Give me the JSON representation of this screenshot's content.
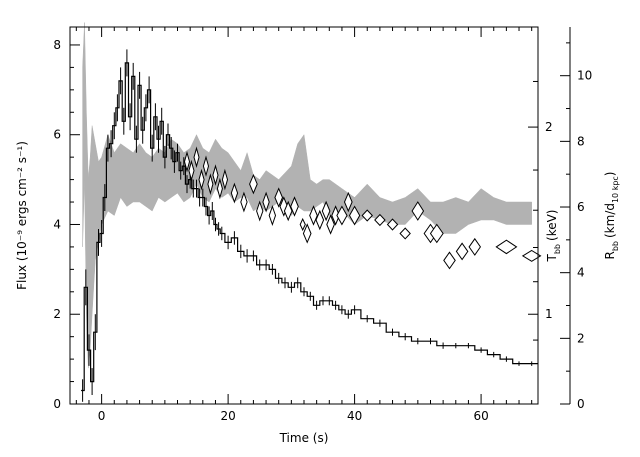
{
  "chart_data": {
    "type": "line",
    "xlabel": "Time (s)",
    "ylabel_left": "Flux (10⁻⁹ ergs cm⁻² s⁻¹)",
    "ylabel_right_inner": "Tₙₙ (keV)",
    "ylabel_right_inner_main": "T",
    "ylabel_right_inner_sub": "bb",
    "ylabel_right_inner_unit": "(keV)",
    "ylabel_right_outer_main": "R",
    "ylabel_right_outer_sub": "bb",
    "ylabel_right_outer_unit": "(km/d",
    "ylabel_right_outer_unit_sub": "10 kpc",
    "ylabel_right_outer_unit_end": ")",
    "xlim": [
      -5,
      69
    ],
    "ylim_left": [
      0,
      8.4
    ],
    "x_ticks": [
      0,
      20,
      40,
      60
    ],
    "y_left_ticks": [
      0,
      2,
      4,
      6,
      8
    ],
    "y_temp_ticks": [
      1,
      2
    ],
    "y_temp_tick_flux": [
      2.0,
      6.17
    ],
    "y_radius_ticks": [
      0,
      2,
      4,
      6,
      8,
      10
    ],
    "y_radius_scale_flux_per_unit": 0.7315,
    "series": [
      {
        "role": "flux",
        "style": "black step histogram with error bars",
        "x": [
          -3,
          -2.5,
          -2,
          -1.5,
          -1,
          -0.5,
          0,
          0.5,
          1,
          1.5,
          2,
          2.5,
          3,
          3.5,
          4,
          4.5,
          5,
          5.5,
          6,
          6.5,
          7,
          7.5,
          8,
          8.5,
          9,
          9.5,
          10,
          10.5,
          11,
          11.5,
          12,
          12.5,
          13,
          13.5,
          14,
          14.5,
          15,
          15.5,
          16,
          16.5,
          17,
          17.5,
          18,
          18.5,
          19,
          20,
          21,
          22,
          23,
          24,
          25,
          26,
          27,
          28,
          29,
          30,
          31,
          32,
          33,
          34,
          35,
          36,
          37,
          38,
          39,
          40,
          42,
          44,
          46,
          48,
          50,
          52,
          54,
          56,
          58,
          60,
          62,
          64,
          66,
          68
        ],
        "y": [
          0.3,
          2.6,
          1.2,
          0.5,
          1.6,
          3.6,
          3.8,
          4.6,
          5.7,
          5.8,
          6.2,
          6.6,
          7.2,
          6.3,
          7.6,
          6.4,
          7.3,
          5.9,
          7.1,
          6.1,
          6.6,
          7.0,
          5.7,
          6.4,
          5.9,
          6.3,
          5.5,
          6.0,
          5.7,
          5.4,
          5.6,
          5.2,
          5.3,
          4.9,
          5.0,
          4.8,
          4.8,
          4.6,
          4.6,
          4.4,
          4.2,
          4.3,
          4.0,
          3.9,
          3.8,
          3.6,
          3.7,
          3.4,
          3.3,
          3.3,
          3.1,
          3.1,
          3.0,
          2.8,
          2.7,
          2.6,
          2.7,
          2.5,
          2.4,
          2.2,
          2.3,
          2.3,
          2.2,
          2.1,
          2.0,
          2.1,
          1.9,
          1.8,
          1.6,
          1.5,
          1.4,
          1.4,
          1.3,
          1.3,
          1.3,
          1.2,
          1.1,
          1.0,
          0.9,
          0.9
        ],
        "yerr": [
          0.25,
          0.4,
          0.35,
          0.3,
          0.4,
          0.3,
          0.3,
          0.3,
          0.3,
          0.3,
          0.3,
          0.3,
          0.3,
          0.3,
          0.3,
          0.3,
          0.3,
          0.3,
          0.3,
          0.3,
          0.3,
          0.3,
          0.3,
          0.3,
          0.3,
          0.3,
          0.25,
          0.25,
          0.25,
          0.25,
          0.2,
          0.2,
          0.2,
          0.2,
          0.2,
          0.2,
          0.2,
          0.2,
          0.2,
          0.2,
          0.2,
          0.2,
          0.15,
          0.15,
          0.15,
          0.15,
          0.15,
          0.15,
          0.15,
          0.12,
          0.12,
          0.12,
          0.12,
          0.12,
          0.12,
          0.12,
          0.12,
          0.1,
          0.1,
          0.1,
          0.1,
          0.1,
          0.1,
          0.1,
          0.1,
          0.1,
          0.08,
          0.08,
          0.08,
          0.08,
          0.07,
          0.07,
          0.07,
          0.06,
          0.06,
          0.06,
          0.06,
          0.06,
          0.05,
          0.05
        ]
      },
      {
        "role": "temperature",
        "style": "black open diamonds",
        "x": [
          13.5,
          14.2,
          15,
          15.8,
          16.5,
          17.2,
          18,
          18.7,
          19.5,
          21,
          22.5,
          24,
          25,
          26,
          27,
          28,
          28.8,
          29.5,
          30.5,
          31.8,
          32.5,
          33.5,
          34.5,
          35.5,
          36.2,
          37,
          38,
          39,
          40,
          42,
          44,
          46,
          48,
          50,
          52,
          53,
          55,
          57,
          59,
          64,
          68
        ],
        "y": [
          5.4,
          5.2,
          5.5,
          5.0,
          5.3,
          4.9,
          5.1,
          4.8,
          5.0,
          4.7,
          4.5,
          4.9,
          4.3,
          4.5,
          4.2,
          4.6,
          4.4,
          4.3,
          4.4,
          4.0,
          3.8,
          4.2,
          4.1,
          4.3,
          4.0,
          4.2,
          4.2,
          4.5,
          4.2,
          4.2,
          4.1,
          4.0,
          3.8,
          4.3,
          3.8,
          3.8,
          3.2,
          3.4,
          3.5,
          3.5,
          3.3
        ],
        "halfw": [
          0.4,
          0.4,
          0.4,
          0.4,
          0.4,
          0.4,
          0.4,
          0.4,
          0.4,
          0.5,
          0.5,
          0.6,
          0.5,
          0.5,
          0.5,
          0.6,
          0.6,
          0.6,
          0.6,
          0.4,
          0.6,
          0.6,
          0.6,
          0.6,
          0.6,
          0.6,
          0.8,
          0.6,
          0.8,
          0.8,
          0.8,
          0.8,
          0.8,
          0.9,
          1.0,
          1.0,
          0.9,
          0.9,
          0.9,
          1.6,
          1.4
        ],
        "halfh": [
          0.2,
          0.2,
          0.2,
          0.2,
          0.2,
          0.2,
          0.2,
          0.2,
          0.2,
          0.2,
          0.2,
          0.2,
          0.2,
          0.2,
          0.2,
          0.2,
          0.2,
          0.2,
          0.2,
          0.12,
          0.2,
          0.2,
          0.2,
          0.2,
          0.2,
          0.2,
          0.2,
          0.2,
          0.2,
          0.12,
          0.12,
          0.12,
          0.12,
          0.2,
          0.2,
          0.2,
          0.18,
          0.18,
          0.18,
          0.15,
          0.12
        ]
      },
      {
        "role": "radius",
        "style": "grey filled band",
        "x": [
          -3,
          -2.7,
          -2.4,
          -2.1,
          -1.8,
          -1.5,
          -1,
          -0.5,
          0,
          1,
          2,
          3,
          4,
          5,
          6,
          7,
          8,
          9,
          10,
          11,
          12,
          13,
          14,
          15,
          16,
          17,
          18,
          19,
          20,
          21,
          22,
          23,
          24,
          25,
          26,
          28,
          30,
          31,
          32,
          33,
          34,
          35,
          36,
          38,
          40,
          42,
          44,
          46,
          48,
          50,
          52,
          54,
          56,
          58,
          60,
          62,
          64,
          66,
          68
        ],
        "ylow": [
          3.5,
          5.0,
          2.0,
          0.8,
          1.2,
          2.0,
          3.2,
          3.6,
          4.0,
          4.3,
          4.2,
          4.6,
          4.4,
          4.5,
          4.5,
          4.4,
          4.3,
          4.6,
          4.5,
          4.6,
          4.7,
          4.5,
          4.6,
          4.9,
          4.6,
          4.5,
          4.8,
          4.6,
          4.7,
          4.5,
          4.6,
          4.6,
          4.3,
          4.4,
          4.3,
          4.5,
          4.2,
          4.4,
          4.3,
          4.3,
          4.4,
          4.5,
          4.2,
          4.3,
          4.0,
          4.2,
          4.1,
          4.0,
          4.0,
          4.3,
          4.1,
          3.8,
          3.8,
          4.0,
          4.1,
          4.1,
          4.0,
          4.0,
          4.0
        ],
        "yhigh": [
          7.5,
          8.5,
          6.5,
          5.0,
          5.5,
          6.2,
          5.8,
          5.4,
          5.5,
          6.0,
          5.6,
          5.8,
          5.7,
          5.6,
          5.8,
          5.6,
          5.5,
          5.7,
          5.6,
          5.9,
          5.8,
          5.6,
          5.7,
          6.0,
          5.7,
          5.6,
          5.9,
          5.7,
          5.6,
          5.4,
          5.2,
          5.6,
          5.1,
          5.0,
          5.2,
          5.0,
          5.3,
          5.8,
          6.0,
          5.0,
          4.9,
          5.0,
          5.0,
          4.8,
          4.6,
          4.9,
          4.6,
          4.5,
          4.6,
          4.8,
          4.5,
          4.5,
          4.6,
          4.5,
          4.8,
          4.6,
          4.5,
          4.5,
          4.5
        ]
      }
    ],
    "grid": false,
    "legend": "none"
  }
}
